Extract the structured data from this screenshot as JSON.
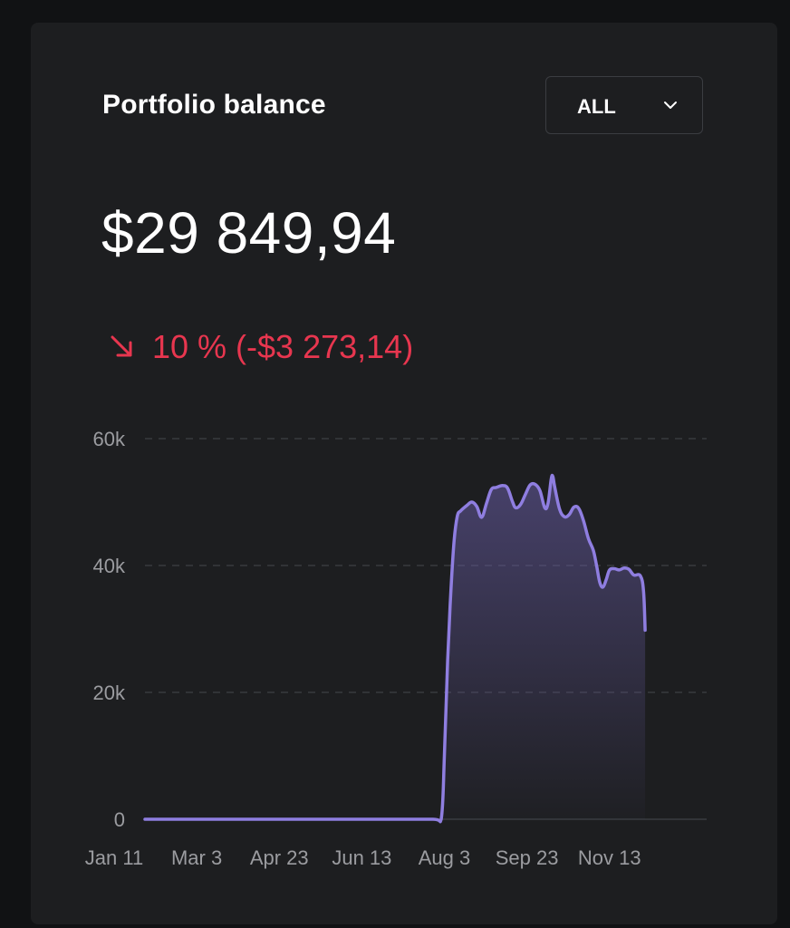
{
  "card": {
    "title": "Portfolio balance",
    "range_select": {
      "value": "ALL",
      "icon": "chevron-down-icon"
    },
    "balance": "$29 849,94",
    "change": {
      "icon": "arrow-down-right-icon",
      "text": "10 % (-$3 273,14)",
      "color": "#e8364f"
    }
  },
  "colors": {
    "line": "#8f7ee0",
    "background": "#1d1e20",
    "negative": "#e8364f"
  },
  "chart_data": {
    "type": "area",
    "y_ticks": [
      {
        "value": 0,
        "label": "0"
      },
      {
        "value": 20000,
        "label": "20k"
      },
      {
        "value": 40000,
        "label": "40k"
      },
      {
        "value": 60000,
        "label": "60k"
      }
    ],
    "x_ticks": [
      {
        "day": 0,
        "label": "Jan 11"
      },
      {
        "day": 51,
        "label": "Mar 3"
      },
      {
        "day": 102,
        "label": "Apr 23"
      },
      {
        "day": 153,
        "label": "Jun 13"
      },
      {
        "day": 204,
        "label": "Aug 3"
      },
      {
        "day": 255,
        "label": "Sep 23"
      },
      {
        "day": 306,
        "label": "Nov 13"
      }
    ],
    "ylim": [
      0,
      60000
    ],
    "xlim": [
      0,
      347
    ],
    "grid": true,
    "points": [
      [
        0,
        0
      ],
      [
        50,
        0
      ],
      [
        100,
        0
      ],
      [
        150,
        0
      ],
      [
        178,
        0
      ],
      [
        183,
        0
      ],
      [
        185,
        10000
      ],
      [
        187,
        25000
      ],
      [
        189,
        36000
      ],
      [
        191,
        44000
      ],
      [
        193,
        47800
      ],
      [
        195,
        48600
      ],
      [
        199,
        49500
      ],
      [
        202,
        50000
      ],
      [
        205,
        49300
      ],
      [
        208,
        47600
      ],
      [
        211,
        49800
      ],
      [
        214,
        52000
      ],
      [
        217,
        52300
      ],
      [
        221,
        52600
      ],
      [
        224,
        52200
      ],
      [
        227,
        50100
      ],
      [
        229,
        49100
      ],
      [
        232,
        49600
      ],
      [
        235,
        51200
      ],
      [
        238,
        52700
      ],
      [
        241,
        52800
      ],
      [
        244,
        51800
      ],
      [
        247,
        49100
      ],
      [
        249,
        49800
      ],
      [
        251,
        53700
      ],
      [
        252,
        54000
      ],
      [
        253,
        52600
      ],
      [
        256,
        49000
      ],
      [
        259,
        47700
      ],
      [
        262,
        48000
      ],
      [
        265,
        49200
      ],
      [
        268,
        49000
      ],
      [
        271,
        47000
      ],
      [
        274,
        44200
      ],
      [
        277,
        42400
      ],
      [
        279,
        40000
      ],
      [
        281,
        37300
      ],
      [
        283,
        36600
      ],
      [
        285,
        37800
      ],
      [
        287,
        39300
      ],
      [
        290,
        39500
      ],
      [
        293,
        39300
      ],
      [
        296,
        39600
      ],
      [
        299,
        39400
      ],
      [
        302,
        38500
      ],
      [
        306,
        38400
      ],
      [
        308,
        36000
      ],
      [
        309,
        29800
      ]
    ]
  }
}
